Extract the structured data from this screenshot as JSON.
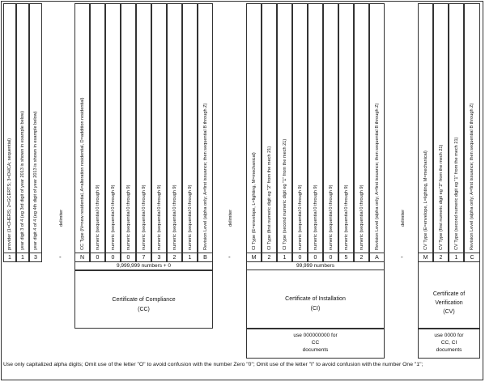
{
  "columns": {
    "c1": "provider (1=CHERS; 2=GCERTS; 3=DHCA; sequential)",
    "c2": "year  digit 3 of 4 (eg 3rd digit of year 2013 is shown in example below)",
    "c3": "year  digit 4 of 4 (eg 4th digit of year 2013 is shown in example below)",
    "d1": "delimiter",
    "cc1": "CC Type  (N=new residential, A=alteration residential, D=addition residential)",
    "cc2": "numeric  (sequential 0 through 9)",
    "cc3": "numeric  (sequential 0 through 9)",
    "cc4": "numeric  (sequential 0 through 9)",
    "cc5": "numeric  (sequential 0 through 9)",
    "cc6": "numeric  (sequential 0 through 9)",
    "cc7": "numeric  (sequential 0 through 9)",
    "cc8": "numeric  (sequential 0 through 9)",
    "cc9": "Revision Level  (alpha only;  A=first issuance; then sequential B through Z)",
    "d2": "delimiter",
    "ci1": "CI Type  (E=envelope, L=lighting, M=mechanical)",
    "ci2": "CI Type  (first numeric digit  eg \"2\" from the mech 21)",
    "ci3": "CI Type  (second numeric digit  eg \"1\" from the mech 21)",
    "ci4": "numeric  (sequential 0 through 9)",
    "ci5": "numeric  (sequential 0 through 9)",
    "ci6": "numeric  (sequential 0 through 9)",
    "ci7": "numeric  (sequential 0 through 9)",
    "ci8": "numeric  (sequential 0 through 9)",
    "ci9": "Revision Level  (alpha only;  A=first issuance; then sequential B through Z)",
    "d3": "delimiter",
    "cv1": "CV Type  (E=envelope, L=lighting, M=mechanical)",
    "cv2": "CV Type  (first numeric digit  eg \"2\" from the mech 21)",
    "cv3": "CV Type  (second numeric digit  eg \"1\" from the mech 21)",
    "cv4": "Revision Level  (alpha only;  A=first issuance; then sequential B through Z)"
  },
  "codes": {
    "c1": "1",
    "c2": "1",
    "c3": "3",
    "d1": "-",
    "cc1": "N",
    "cc2": "0",
    "cc3": "0",
    "cc4": "0",
    "cc5": "7",
    "cc6": "3",
    "cc7": "2",
    "cc8": "1",
    "cc9": "B",
    "d2": "-",
    "ci1": "M",
    "ci2": "2",
    "ci3": "1",
    "ci4": "0",
    "ci5": "0",
    "ci6": "0",
    "ci7": "5",
    "ci8": "2",
    "ci9": "A",
    "d3": "-",
    "cv1": "M",
    "cv2": "2",
    "cv3": "1",
    "cv4": "C"
  },
  "counts": {
    "cc": "9,999,999 numbers + 0",
    "ci": "99,999 numbers"
  },
  "sections": {
    "cc_title": "Certificate of Compliance",
    "cc_abbr": "(CC)",
    "ci_title": "Certificate of Installation",
    "ci_abbr": "(CI)",
    "cv_title1": "Certificate of",
    "cv_title2": "Verification",
    "cv_abbr": "(CV)"
  },
  "notes": {
    "ci_l1": "use 000000000 for",
    "ci_l2": "CC",
    "ci_l3": "documents",
    "cv_l1": "use 0000 for",
    "cv_l2": "CC, CI",
    "cv_l3": "documents"
  },
  "footer": "Use only capitalized alpha digits;  Omit use of the letter \"O\" to avoid confusion with the number Zero \"0\";   Omit use of the letter \"I\" to avoid confusion with the number One \"1\";"
}
